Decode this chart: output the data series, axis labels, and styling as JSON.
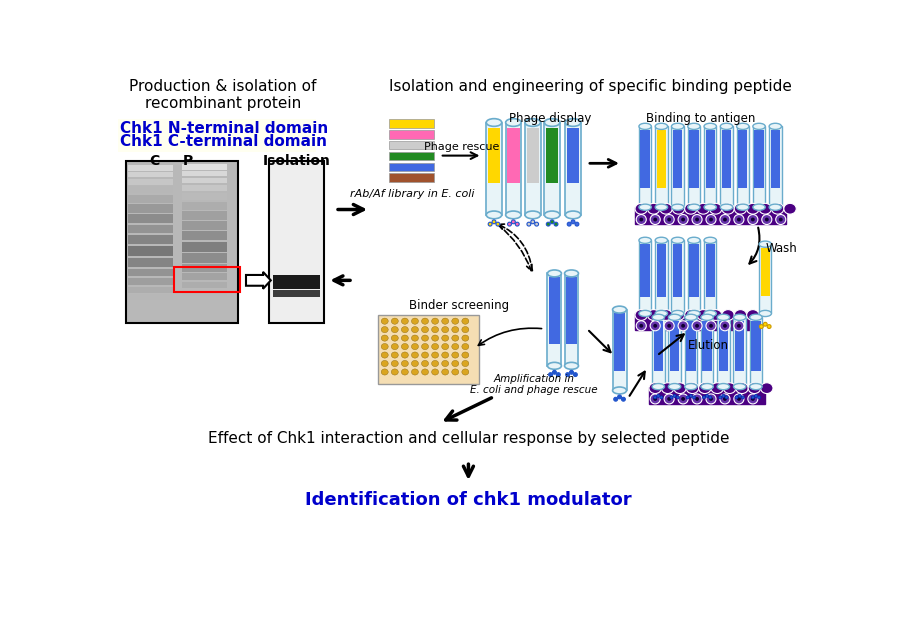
{
  "title_left": "Production & isolation of\nrecombinant protein",
  "title_right": "Isolation and engineering of specific binding peptide",
  "blue_text1": "Chk1 N-terminal domain",
  "blue_text2": "Chk1 C-terminal domain",
  "label_C": "C",
  "label_P": "P",
  "label_isolation": "Isolation",
  "phage_rescue_text": "Phage rescue",
  "phage_display_text": "Phage display",
  "binding_antigen_text": "Binding to antigen",
  "wash_text": "Wash",
  "elution_text": "Elution",
  "amplification_text": "Amplification in\nE. coli and phage rescue",
  "binder_screening_text": "Binder screening",
  "library_text": "rAb/Af library in E. coli",
  "bottom_text1": "Effect of Chk1 interaction and cellular response by selected peptide",
  "bottom_text2": "Identification of chk1 modulator",
  "blue_color": "#0000CC",
  "black": "#000000",
  "white": "#FFFFFF",
  "bg_color": "#FFFFFF",
  "stripe_yellow": "#FFD700",
  "stripe_pink": "#FF69B4",
  "stripe_lightgray": "#CCCCCC",
  "stripe_green": "#228B22",
  "stripe_blue": "#4169E1",
  "stripe_brown": "#A0522D",
  "tube_outline": "#87CEEB",
  "tube_fill_blue": "#4169E1",
  "tube_body": "#E8F4F8",
  "tube_border": "#6AACCC",
  "antigen_base": "#4B0082",
  "binder_orange": "#DAA520",
  "phage_dot_blue": "#2255CC",
  "phage_dot_yellow": "#FFD700"
}
